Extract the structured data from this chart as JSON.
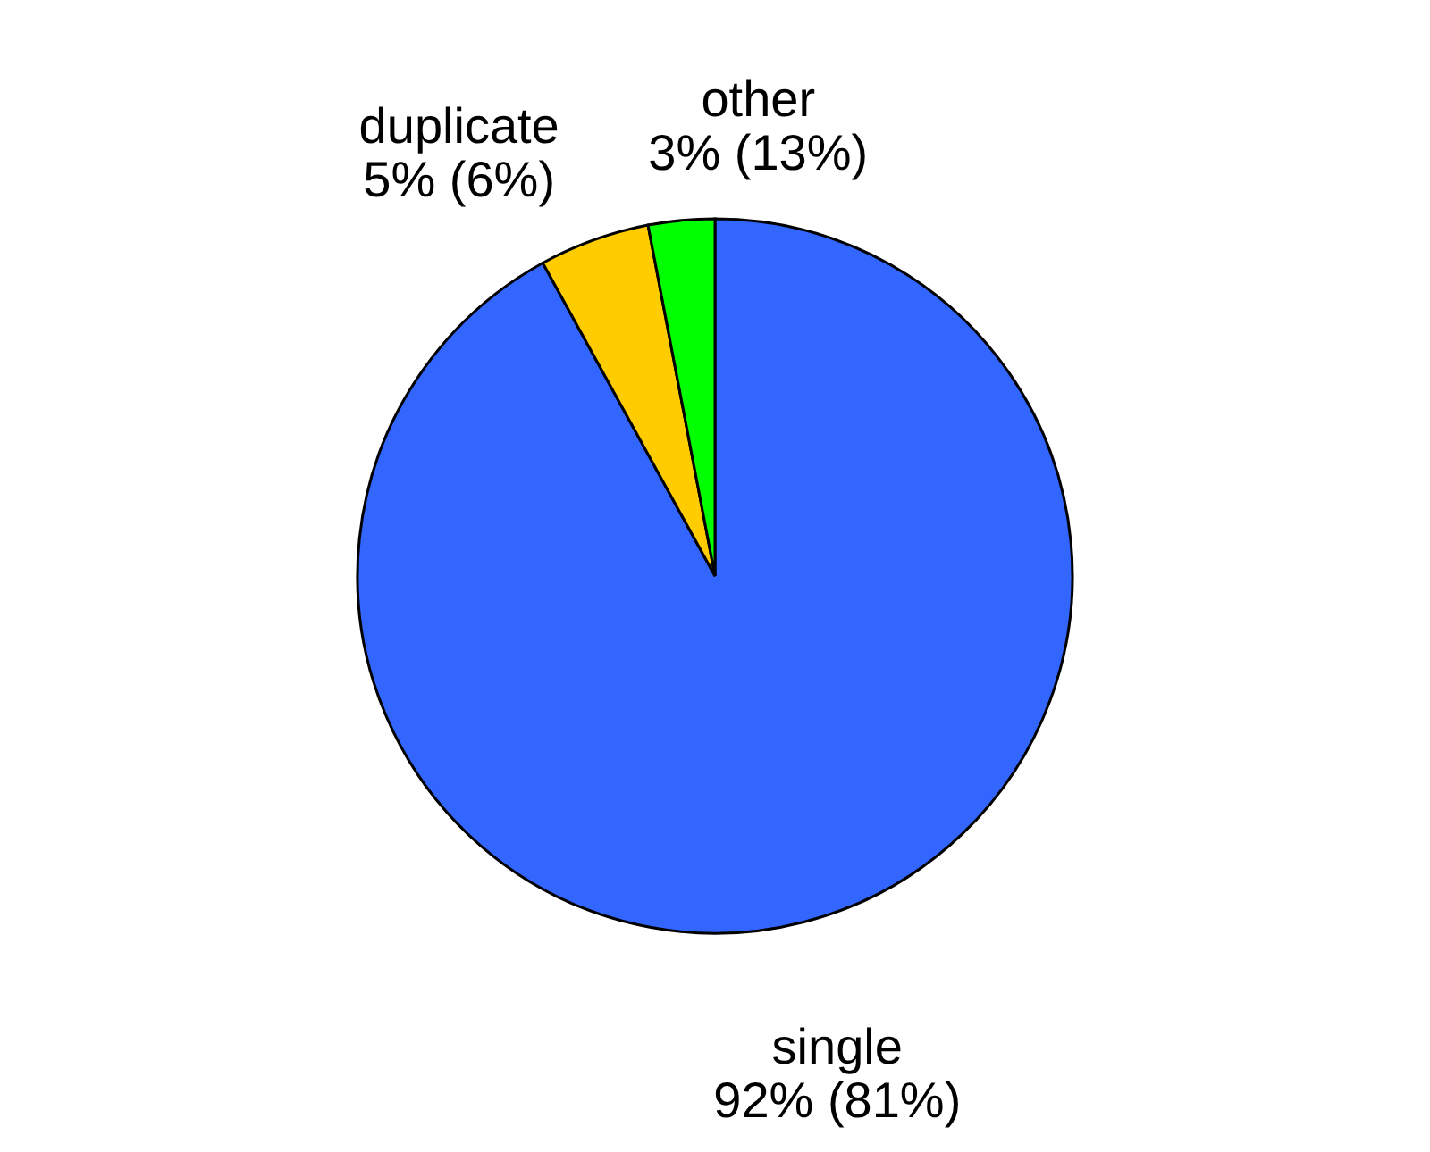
{
  "chart_data": {
    "type": "pie",
    "categories": [
      "single",
      "duplicate",
      "other"
    ],
    "values": [
      92,
      5,
      3
    ],
    "value_labels": [
      "92% (81%)",
      "5% (6%)",
      "3% (13%)"
    ],
    "colors": [
      "#3366ff",
      "#ffcc00",
      "#00ff00"
    ]
  }
}
